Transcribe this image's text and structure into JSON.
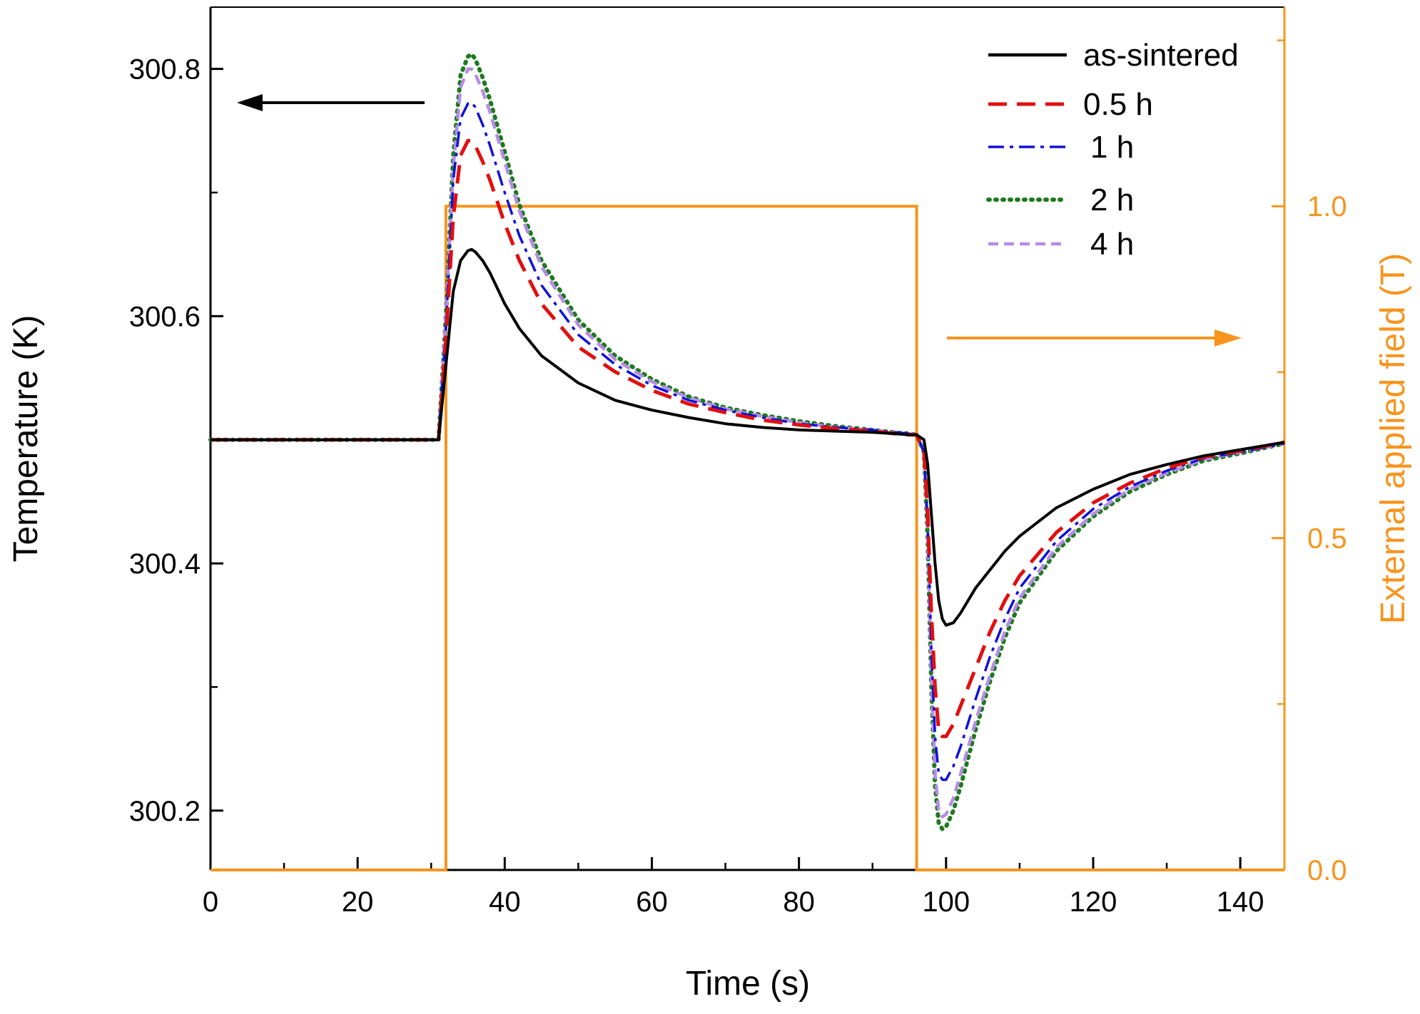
{
  "chart_data": {
    "type": "line",
    "title": "",
    "xlabel": "Time (s)",
    "ylabel_left": "Temperature (K)",
    "ylabel_right": "External applied field (T)",
    "xlim": [
      0,
      146
    ],
    "ylim_left": [
      300.152,
      300.85
    ],
    "ylim_right": [
      0,
      1.3
    ],
    "x_ticks": [
      0,
      20,
      40,
      60,
      80,
      100,
      120,
      140
    ],
    "x_tick_labels": [
      "0",
      "20",
      "40",
      "60",
      "80",
      "100",
      "120",
      "140"
    ],
    "y_left_ticks": [
      300.2,
      300.4,
      300.6,
      300.8
    ],
    "y_left_tick_labels": [
      "300.2",
      "300.4",
      "300.6",
      "300.8"
    ],
    "y_right_ticks": [
      0.0,
      0.5,
      1.0
    ],
    "y_right_tick_labels": [
      "0.0",
      "0.5",
      "1.0"
    ],
    "grid": false,
    "legend_position": "top-right",
    "colors": {
      "as_sintered": "#000000",
      "h05": "#e01010",
      "h1": "#1010d8",
      "h2": "#1e7a1e",
      "h4": "#b58ce6",
      "field": "#f7941d",
      "axis": "#000000"
    },
    "field_series": {
      "name": "External applied field",
      "axis": "right",
      "x": [
        0,
        32,
        32,
        96,
        96,
        146
      ],
      "y": [
        0,
        0,
        1.0,
        1.0,
        0,
        0
      ]
    },
    "series": [
      {
        "name": "as-sintered",
        "key": "as_sintered",
        "dash": "solid",
        "baseline": 300.5,
        "x": [
          0,
          30,
          31,
          32,
          33,
          34,
          35,
          35.5,
          36,
          37,
          38,
          40,
          42,
          45,
          50,
          55,
          60,
          65,
          70,
          75,
          80,
          85,
          90,
          93,
          95,
          96,
          97,
          97.5,
          98,
          98.5,
          99,
          99.5,
          100,
          101,
          102,
          104,
          106,
          108,
          110,
          115,
          120,
          125,
          130,
          135,
          140,
          146
        ],
        "y": [
          300.5,
          300.5,
          300.5,
          300.56,
          300.62,
          300.645,
          300.653,
          300.654,
          300.652,
          300.645,
          300.635,
          300.61,
          300.59,
          300.568,
          300.546,
          300.532,
          300.524,
          300.518,
          300.513,
          300.51,
          300.508,
          300.507,
          300.506,
          300.505,
          300.504,
          300.504,
          300.5,
          300.48,
          300.44,
          300.4,
          300.37,
          300.355,
          300.35,
          300.352,
          300.36,
          300.38,
          300.395,
          300.41,
          300.422,
          300.445,
          300.46,
          300.472,
          300.48,
          300.487,
          300.492,
          300.498
        ]
      },
      {
        "name": "0.5 h",
        "key": "h05",
        "dash": "dashed",
        "x": [
          0,
          30,
          31,
          32,
          33,
          34,
          35,
          35.5,
          36,
          37,
          38,
          40,
          42,
          45,
          50,
          55,
          60,
          65,
          70,
          75,
          80,
          85,
          90,
          93,
          95,
          96,
          97,
          97.5,
          98,
          98.5,
          99,
          99.5,
          100,
          101,
          102,
          104,
          106,
          108,
          110,
          115,
          120,
          125,
          130,
          135,
          140,
          146
        ],
        "y": [
          300.5,
          300.5,
          300.5,
          300.58,
          300.68,
          300.73,
          300.742,
          300.742,
          300.738,
          300.725,
          300.71,
          300.675,
          300.645,
          300.61,
          300.575,
          300.555,
          300.54,
          300.529,
          300.522,
          300.516,
          300.512,
          300.509,
          300.507,
          300.505,
          300.504,
          300.504,
          300.49,
          300.44,
          300.36,
          300.3,
          300.265,
          300.26,
          300.26,
          300.27,
          300.285,
          300.315,
          300.345,
          300.37,
          300.39,
          300.425,
          300.449,
          300.465,
          300.477,
          300.486,
          300.491,
          300.498
        ]
      },
      {
        "name": "1 h",
        "key": "h1",
        "dash": "dashdot",
        "x": [
          0,
          30,
          31,
          32,
          33,
          34,
          35,
          35.5,
          36,
          37,
          38,
          40,
          42,
          45,
          50,
          55,
          60,
          65,
          70,
          75,
          80,
          85,
          90,
          93,
          95,
          96,
          97,
          97.5,
          98,
          98.5,
          99,
          99.5,
          100,
          101,
          102,
          104,
          106,
          108,
          110,
          115,
          120,
          125,
          130,
          135,
          140,
          146
        ],
        "y": [
          300.5,
          300.5,
          300.5,
          300.59,
          300.71,
          300.76,
          300.772,
          300.773,
          300.769,
          300.755,
          300.738,
          300.7,
          300.665,
          300.625,
          300.585,
          300.561,
          300.544,
          300.532,
          300.524,
          300.518,
          300.513,
          300.51,
          300.508,
          300.506,
          300.505,
          300.504,
          300.49,
          300.43,
          300.33,
          300.26,
          300.23,
          300.225,
          300.225,
          300.236,
          300.252,
          300.29,
          300.325,
          300.355,
          300.38,
          300.418,
          300.444,
          300.462,
          300.475,
          300.485,
          300.49,
          300.497
        ]
      },
      {
        "name": "2 h",
        "key": "h2",
        "dash": "dotted",
        "x": [
          0,
          30,
          31,
          32,
          33,
          34,
          35,
          35.5,
          36,
          37,
          38,
          40,
          42,
          45,
          50,
          55,
          60,
          65,
          70,
          75,
          80,
          85,
          90,
          93,
          95,
          96,
          97,
          97.5,
          98,
          98.5,
          99,
          99.5,
          100,
          101,
          102,
          104,
          106,
          108,
          110,
          115,
          120,
          125,
          130,
          135,
          140,
          146
        ],
        "y": [
          300.5,
          300.5,
          300.5,
          300.6,
          300.73,
          300.795,
          300.81,
          300.812,
          300.808,
          300.793,
          300.775,
          300.733,
          300.69,
          300.645,
          300.597,
          300.568,
          300.549,
          300.535,
          300.526,
          300.52,
          300.515,
          300.511,
          300.508,
          300.506,
          300.505,
          300.504,
          300.49,
          300.42,
          300.3,
          300.22,
          300.19,
          300.185,
          300.187,
          300.2,
          300.22,
          300.265,
          300.305,
          300.34,
          300.368,
          300.41,
          300.438,
          300.458,
          300.472,
          300.483,
          300.489,
          300.497
        ]
      },
      {
        "name": "4 h",
        "key": "h4",
        "dash": "shortdash",
        "x": [
          0,
          30,
          31,
          32,
          33,
          34,
          35,
          35.5,
          36,
          37,
          38,
          40,
          42,
          45,
          50,
          55,
          60,
          65,
          70,
          75,
          80,
          85,
          90,
          93,
          95,
          96,
          97,
          97.5,
          98,
          98.5,
          99,
          99.5,
          100,
          101,
          102,
          104,
          106,
          108,
          110,
          115,
          120,
          125,
          130,
          135,
          140,
          146
        ],
        "y": [
          300.5,
          300.5,
          300.5,
          300.6,
          300.72,
          300.785,
          300.8,
          300.8,
          300.796,
          300.782,
          300.765,
          300.725,
          300.685,
          300.64,
          300.593,
          300.565,
          300.547,
          300.534,
          300.525,
          300.519,
          300.514,
          300.51,
          300.508,
          300.506,
          300.505,
          300.504,
          300.49,
          300.425,
          300.31,
          300.23,
          300.2,
          300.195,
          300.197,
          300.21,
          300.23,
          300.272,
          300.31,
          300.345,
          300.372,
          300.413,
          300.44,
          300.46,
          300.473,
          300.484,
          300.49,
          300.497
        ]
      }
    ]
  }
}
